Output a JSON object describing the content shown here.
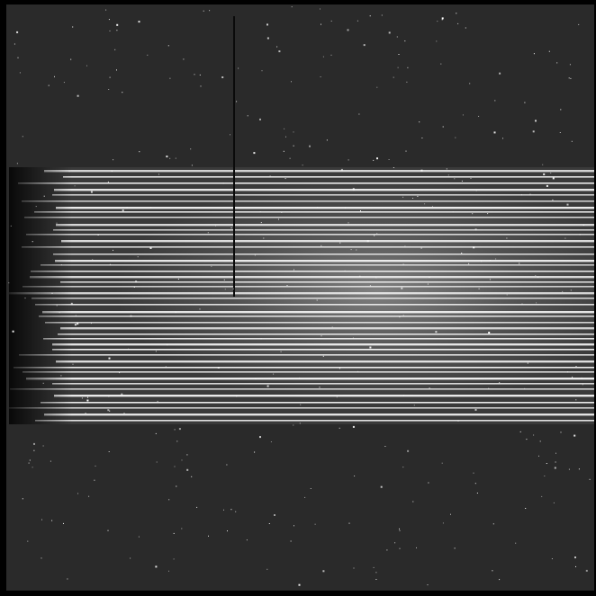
{
  "image": {
    "kind": "ccd-frame",
    "colors": {
      "frame_border": "#000000",
      "background": "#2a2a2a",
      "trace": "#f2f2f2",
      "star": "#ffffff"
    }
  }
}
